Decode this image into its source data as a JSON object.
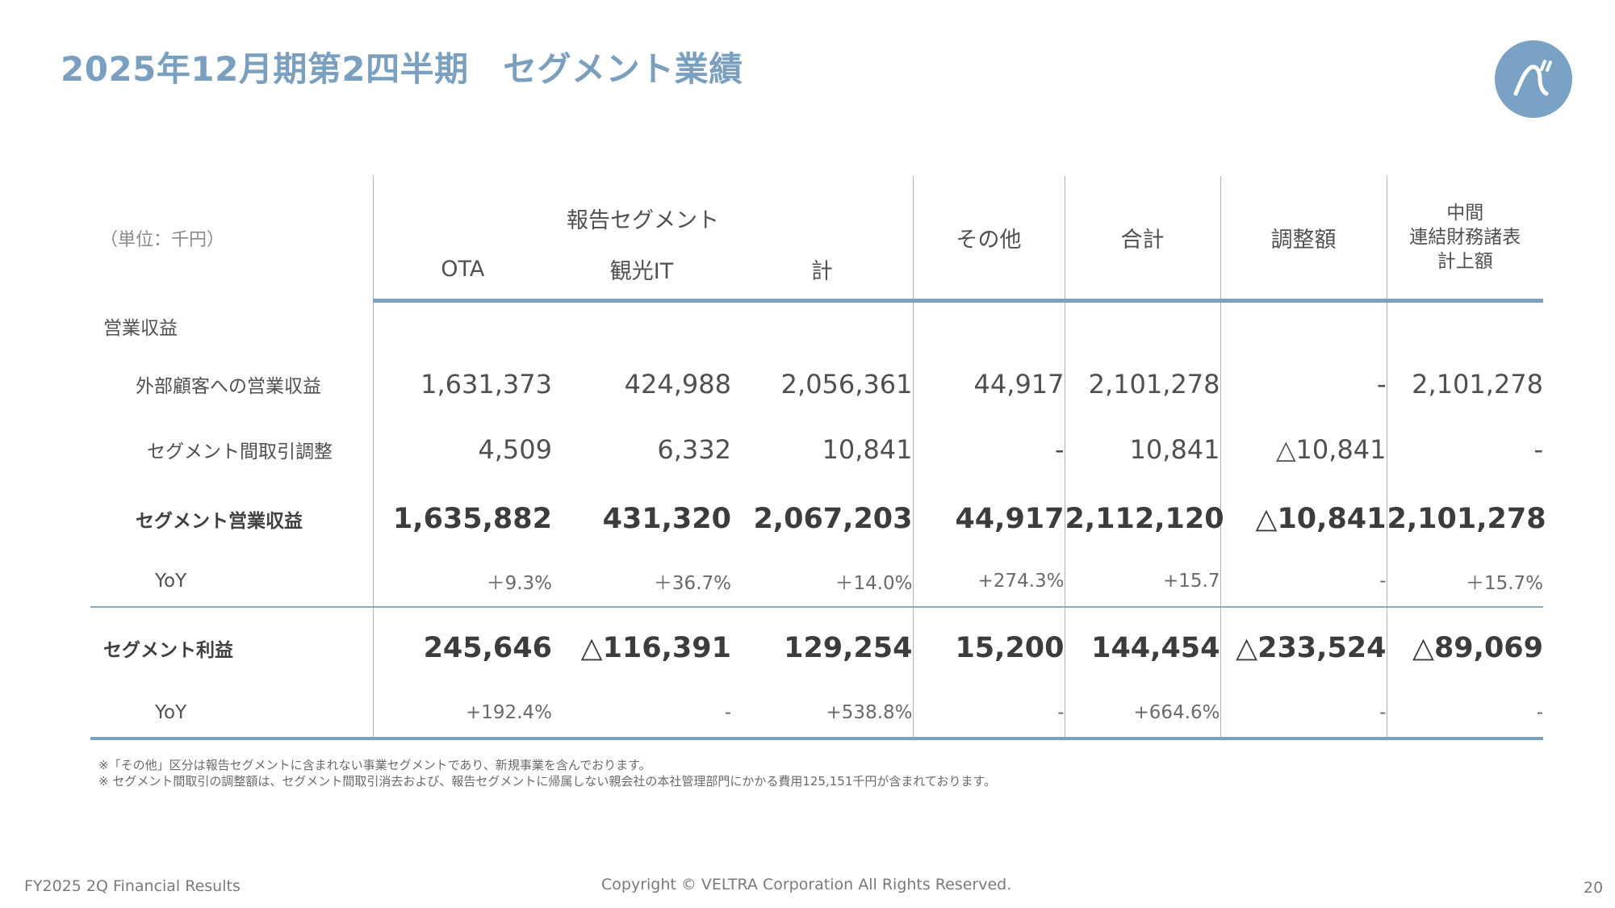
{
  "title": "2025年12月期第2四半期　セグメント業績",
  "table": {
    "unit": "（単位：千円）",
    "header": {
      "report_segment": "報告セグメント",
      "ota": "OTA",
      "kanko_it": "観光IT",
      "kei": "計",
      "sonota": "その他",
      "goukei": "合計",
      "chouseigaku": "調整額",
      "chukan_line1": "中間",
      "chukan_line2": "連結財務諸表",
      "chukan_line3": "計上額"
    },
    "section_revenue": "営業収益",
    "rows": {
      "external": {
        "label": "外部顧客への営業収益",
        "values": [
          "1,631,373",
          "424,988",
          "2,056,361",
          "44,917",
          "2,101,278",
          "-",
          "2,101,278"
        ]
      },
      "intersegment": {
        "label": "セグメント間取引調整",
        "values": [
          "4,509",
          "6,332",
          "10,841",
          "-",
          "10,841",
          "△10,841",
          "-"
        ]
      },
      "segment_revenue": {
        "label": "セグメント営業収益",
        "values": [
          "1,635,882",
          "431,320",
          "2,067,203",
          "44,917",
          "2,112,120",
          "△10,841",
          "2,101,278"
        ]
      },
      "revenue_yoy": {
        "label": "YoY",
        "values": [
          "＋9.3%",
          "＋36.7%",
          "＋14.0%",
          "+274.3%",
          "+15.7",
          "-",
          "＋15.7%"
        ]
      },
      "segment_profit": {
        "label": "セグメント利益",
        "values": [
          "245,646",
          "△116,391",
          "129,254",
          "15,200",
          "144,454",
          "△233,524",
          "△89,069"
        ]
      },
      "profit_yoy": {
        "label": "YoY",
        "values": [
          "+192.4%",
          "-",
          "+538.8%",
          "-",
          "+664.6%",
          "-",
          "-"
        ]
      }
    }
  },
  "notes": [
    "※「その他」区分は報告セグメントに含まれない事業セグメントであり、新規事業を含んでおります。",
    "※ セグメント間取引の調整額は、セグメント間取引消去および、報告セグメントに帰属しない親会社の本社管理部門にかかる費用125,151千円が含まれております。"
  ],
  "footer": {
    "left": "FY2025 2Q Financial Results",
    "center": "Copyright © VELTRA Corporation All Rights Reserved.",
    "page": "20"
  },
  "colors": {
    "accent": "#7a9fbf",
    "rule": "#7f9fbd"
  }
}
